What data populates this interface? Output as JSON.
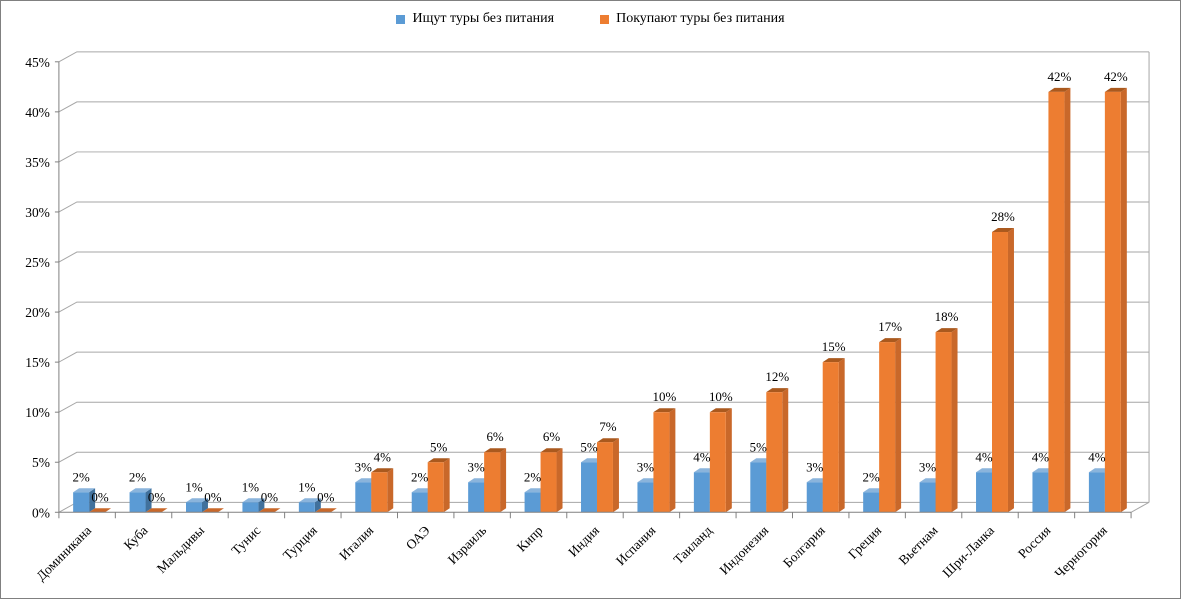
{
  "window": {
    "background": "#ffffff",
    "border_color": "#808080"
  },
  "chart_data": {
    "type": "bar",
    "style": "3d-clustered-column",
    "title": "",
    "xlabel": "",
    "ylabel": "",
    "categories": [
      "Доминикана",
      "Куба",
      "Мальдивы",
      "Тунис",
      "Турция",
      "Италия",
      "ОАЭ",
      "Израиль",
      "Кипр",
      "Индия",
      "Испания",
      "Таиланд",
      "Индонезия",
      "Болгария",
      "Греция",
      "Вьетнам",
      "Шри-Ланка",
      "Россия",
      "Черногория"
    ],
    "series": [
      {
        "name": "Ищут туры без питания",
        "values": [
          2,
          2,
          1,
          1,
          1,
          3,
          2,
          3,
          2,
          5,
          3,
          4,
          5,
          3,
          2,
          3,
          4,
          4,
          4
        ],
        "color": "#5B9BD5",
        "color_top": "#8AB4DC",
        "color_side": "#41719C"
      },
      {
        "name": "Покупают туры без питания",
        "values": [
          0,
          0,
          0,
          0,
          0,
          4,
          5,
          6,
          6,
          7,
          10,
          10,
          12,
          15,
          17,
          18,
          28,
          42,
          42
        ],
        "color": "#ED7D31",
        "color_top": "#AA591E",
        "color_side": "#C9682A"
      }
    ],
    "value_suffix": "%",
    "y_ticks": [
      0,
      5,
      10,
      15,
      20,
      25,
      30,
      35,
      40,
      45
    ],
    "ylim": [
      0,
      45
    ],
    "grid": true,
    "legend_position": "top",
    "gridline_color": "#A6A6A6",
    "axis_color": "#808080",
    "text_color": "#000000"
  }
}
